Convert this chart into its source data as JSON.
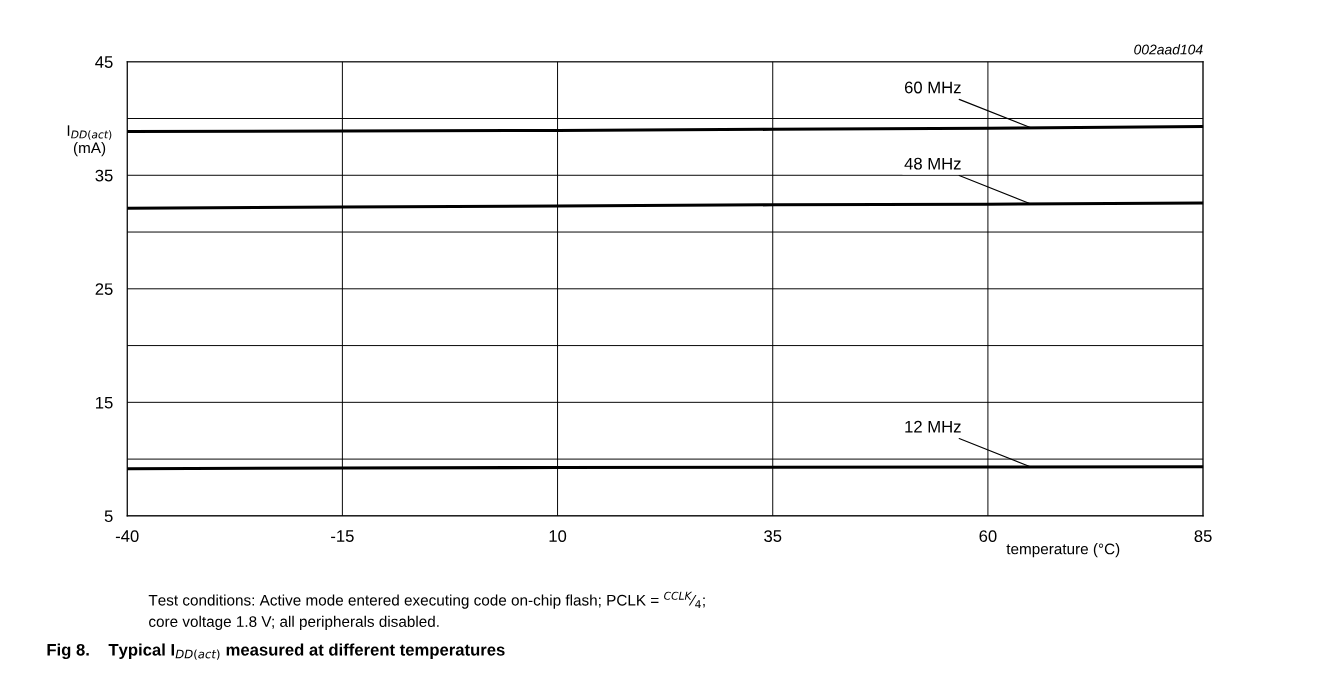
{
  "chart_data": {
    "type": "line",
    "title": "Fig 8.    Typical I$_{DD(act)}$ measured at different temperatures",
    "xlabel": "temperature (°C)",
    "ylabel": "I$_{DD(act)}$\n(mA)",
    "x": [
      -40,
      -15,
      10,
      35,
      60,
      85
    ],
    "series": [
      {
        "name": "60 MHz",
        "color": "#000000",
        "values": [
          38.85,
          38.9,
          38.95,
          39.05,
          39.15,
          39.3
        ]
      },
      {
        "name": "48 MHz",
        "color": "#000000",
        "values": [
          32.1,
          32.2,
          32.3,
          32.4,
          32.45,
          32.55
        ]
      },
      {
        "name": "12 MHz",
        "color": "#000000",
        "values": [
          9.15,
          9.22,
          9.26,
          9.28,
          9.3,
          9.33
        ]
      }
    ],
    "xlim": [
      -40,
      85
    ],
    "xticks": [
      -40,
      -15,
      10,
      35,
      60,
      85
    ],
    "ylim": [
      5,
      45
    ],
    "yticks": [
      5,
      {
        "value": 10,
        "label": null
      },
      15,
      {
        "value": 20,
        "label": null
      },
      25,
      {
        "value": 30,
        "label": null
      },
      35,
      {
        "value": 40,
        "label": null
      },
      45
    ],
    "grid": true,
    "legend": false,
    "marker": "none",
    "line_style": "solid",
    "annotations": [
      "002aad104",
      "Test conditions: Active mode entered executing code on-chip flash; PCLK = $^{CCLK}$⁄$_{4}$;",
      "core voltage 1.8 V; all peripherals disabled."
    ]
  }
}
